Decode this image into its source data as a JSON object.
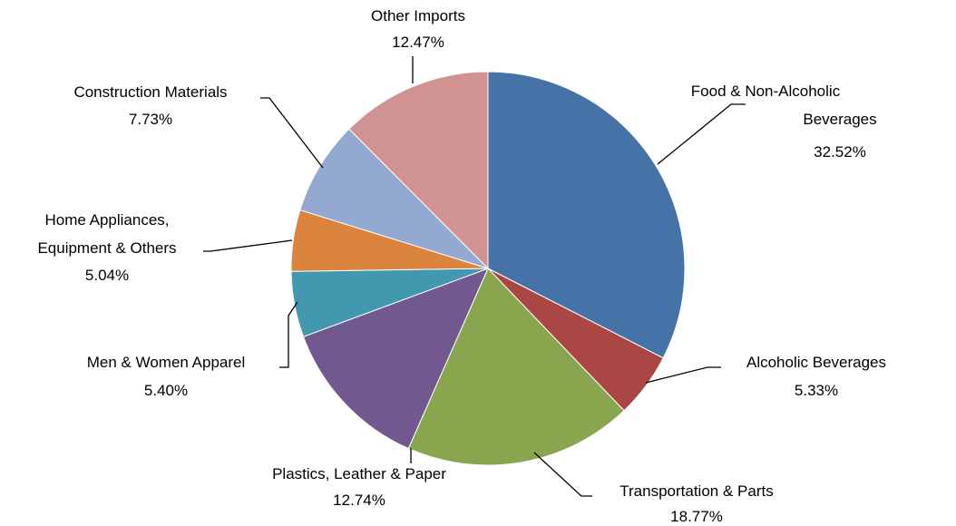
{
  "chart_data": {
    "type": "pie",
    "title": "",
    "start_angle_deg": 0,
    "direction": "clockwise",
    "colors": {
      "food": "#4673A7",
      "alcoholic": "#AA4643",
      "transport": "#89A54E",
      "plastics": "#71588F",
      "apparel": "#4198AF",
      "home": "#DB843D",
      "construction": "#93A9CF",
      "other": "#D19392"
    },
    "slices": [
      {
        "key": "food",
        "label": [
          "Food & Non-Alcoholic",
          "Beverages"
        ],
        "value": 32.52,
        "value_label": "32.52%"
      },
      {
        "key": "alcoholic",
        "label": [
          "Alcoholic Beverages"
        ],
        "value": 5.33,
        "value_label": "5.33%"
      },
      {
        "key": "transport",
        "label": [
          "Transportation & Parts"
        ],
        "value": 18.77,
        "value_label": "18.77%"
      },
      {
        "key": "plastics",
        "label": [
          "Plastics, Leather & Paper"
        ],
        "value": 12.74,
        "value_label": "12.74%"
      },
      {
        "key": "apparel",
        "label": [
          "Men & Women Apparel"
        ],
        "value": 5.4,
        "value_label": "5.40%"
      },
      {
        "key": "home",
        "label": [
          "Home Appliances,",
          "Equipment & Others"
        ],
        "value": 5.04,
        "value_label": "5.04%"
      },
      {
        "key": "construction",
        "label": [
          "Construction Materials"
        ],
        "value": 7.73,
        "value_label": "7.73%"
      },
      {
        "key": "other",
        "label": [
          "Other Imports"
        ],
        "value": 12.47,
        "value_label": "12.47%"
      }
    ]
  }
}
